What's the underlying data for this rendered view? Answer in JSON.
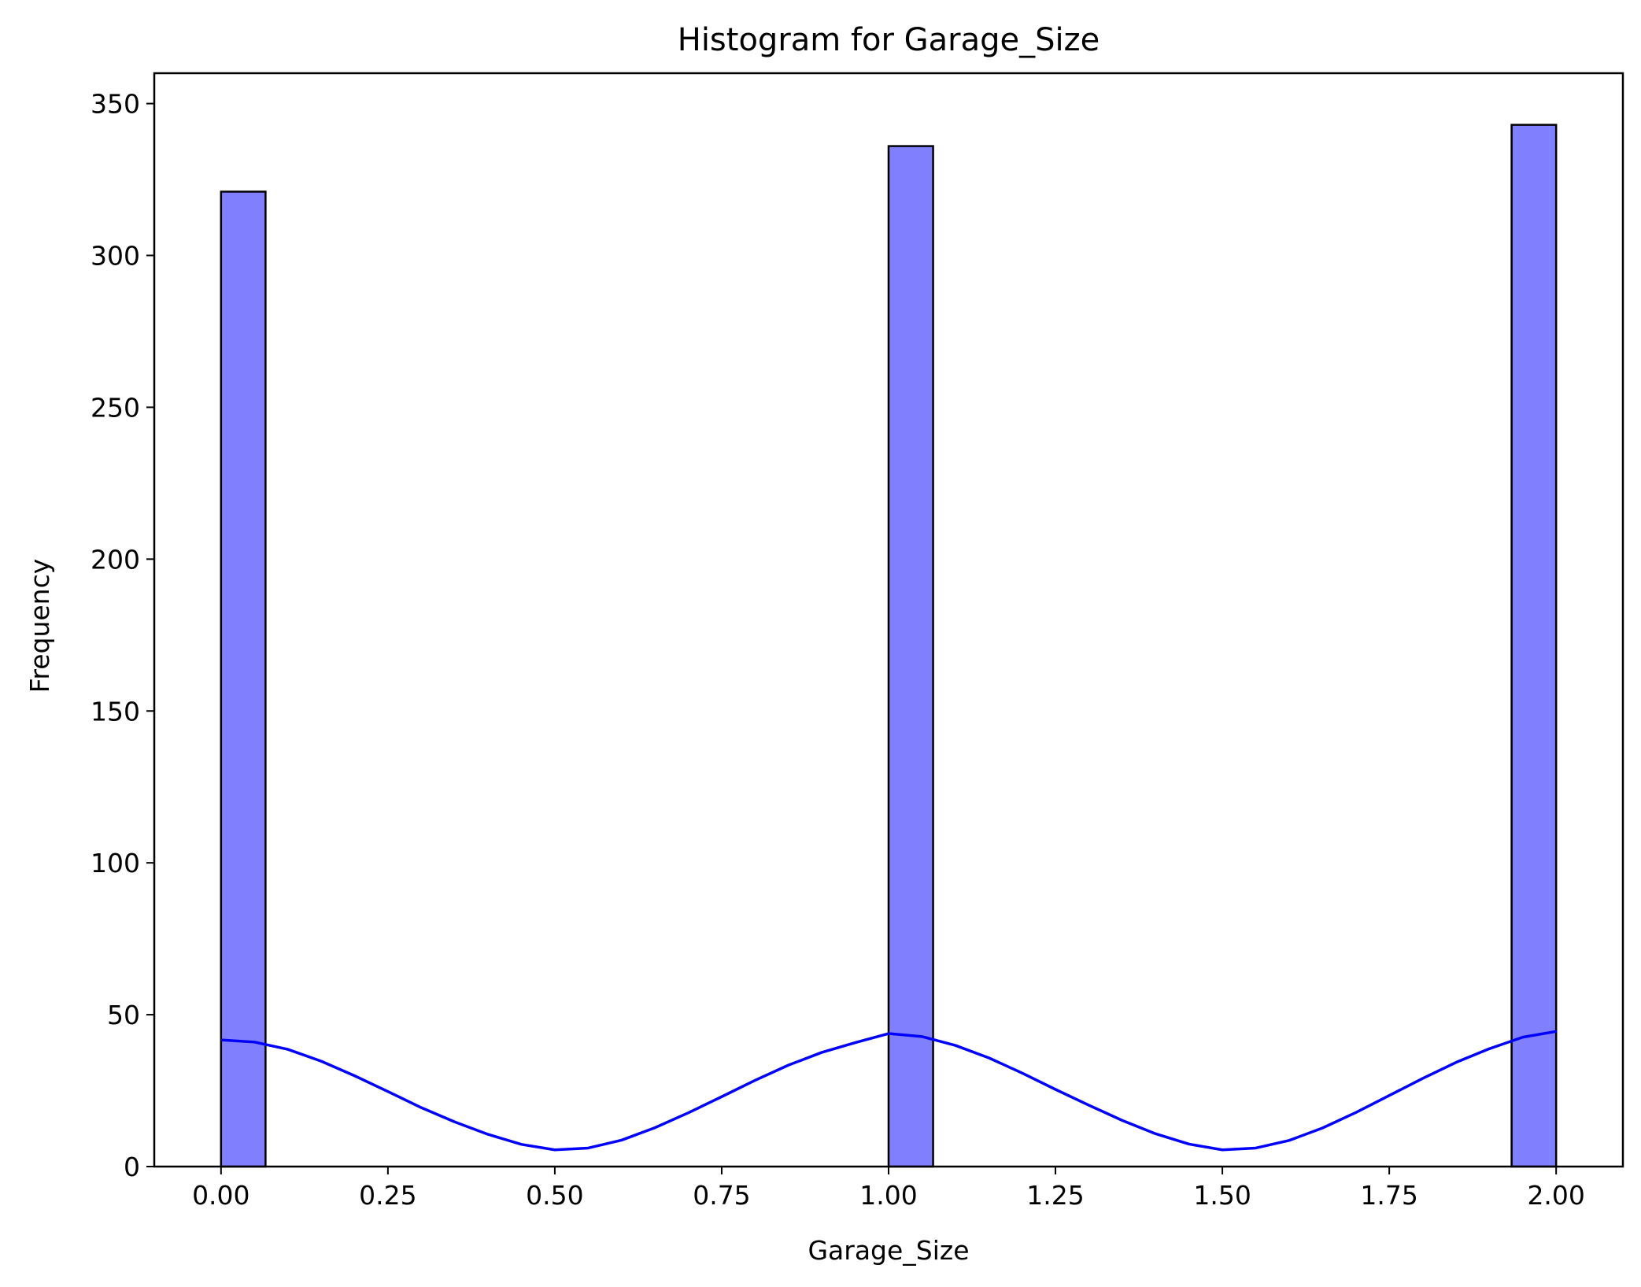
{
  "chart_data": {
    "type": "bar",
    "title": "Histogram for Garage_Size",
    "xlabel": "Garage_Size",
    "ylabel": "Frequency",
    "xlim": [
      -0.1,
      2.1
    ],
    "ylim": [
      0,
      360
    ],
    "bin_width": 0.0667,
    "bars": [
      {
        "x0": 0.0,
        "x1": 0.0667,
        "count": 321
      },
      {
        "x0": 1.0,
        "x1": 1.0667,
        "count": 336
      },
      {
        "x0": 1.9333,
        "x1": 2.0,
        "count": 343
      }
    ],
    "kde_curve": {
      "x": [
        0.0,
        0.05,
        0.1,
        0.15,
        0.2,
        0.25,
        0.3,
        0.35,
        0.4,
        0.45,
        0.5,
        0.55,
        0.6,
        0.65,
        0.7,
        0.75,
        0.8,
        0.85,
        0.9,
        0.95,
        1.0,
        1.05,
        1.1,
        1.15,
        1.2,
        1.25,
        1.3,
        1.35,
        1.4,
        1.45,
        1.5,
        1.55,
        1.6,
        1.65,
        1.7,
        1.75,
        1.8,
        1.85,
        1.9,
        1.95,
        2.0
      ],
      "y": [
        41.7,
        41.0,
        38.6,
        34.7,
        29.9,
        24.7,
        19.4,
        14.7,
        10.6,
        7.3,
        5.5,
        6.1,
        8.7,
        12.8,
        17.7,
        23.0,
        28.4,
        33.4,
        37.6,
        40.8,
        43.8,
        42.8,
        39.9,
        35.8,
        30.8,
        25.4,
        20.2,
        15.2,
        10.8,
        7.4,
        5.5,
        6.1,
        8.6,
        12.7,
        17.8,
        23.4,
        29.0,
        34.3,
        38.8,
        42.6,
        44.5
      ]
    },
    "x_ticks": [
      "0.00",
      "0.25",
      "0.50",
      "0.75",
      "1.00",
      "1.25",
      "1.50",
      "1.75",
      "2.00"
    ],
    "x_tick_values": [
      0,
      0.25,
      0.5,
      0.75,
      1.0,
      1.25,
      1.5,
      1.75,
      2.0
    ],
    "y_ticks": [
      "0",
      "50",
      "100",
      "150",
      "200",
      "250",
      "300",
      "350"
    ],
    "y_tick_values": [
      0,
      50,
      100,
      150,
      200,
      250,
      300,
      350
    ],
    "grid": false,
    "colors": {
      "bar_fill": "#8080ff",
      "bar_edge": "#000000",
      "kde_line": "#0000ff"
    }
  }
}
